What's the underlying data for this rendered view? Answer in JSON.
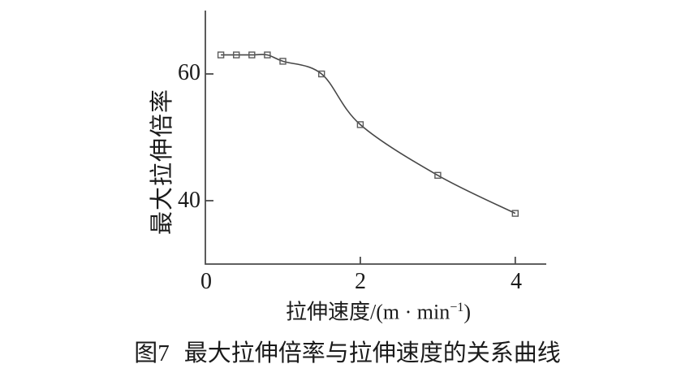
{
  "figure": {
    "caption_prefix": "图7",
    "caption_title": "最大拉伸倍率与拉伸速度的关系曲线"
  },
  "chart_data": {
    "type": "line",
    "title": "",
    "xlabel": "拉伸速度/(m · min⁻¹)",
    "xlabel_parts": {
      "pre": "拉伸速度/(m · min",
      "sup": "−1",
      "post": ")"
    },
    "ylabel": "最大拉伸倍率",
    "x": [
      0.2,
      0.4,
      0.6,
      0.8,
      1.0,
      1.5,
      2.0,
      3.0,
      4.0
    ],
    "y": [
      63,
      63,
      63,
      63,
      62,
      60,
      52,
      44,
      38
    ],
    "xlim": [
      0,
      4.4
    ],
    "ylim": [
      30,
      70
    ],
    "xticks": [
      {
        "value": 0,
        "label": "0"
      },
      {
        "value": 2,
        "label": "2"
      },
      {
        "value": 4,
        "label": "4"
      }
    ],
    "yticks": [
      {
        "value": 60,
        "label": "60"
      },
      {
        "value": 40,
        "label": "40"
      }
    ],
    "marker": "open-square",
    "grid": false,
    "legend": "none",
    "line_color": "#474747",
    "axis_color": "#4a4a4a",
    "marker_color": "#5a5a5a",
    "text_color": "#1b1b1b"
  }
}
